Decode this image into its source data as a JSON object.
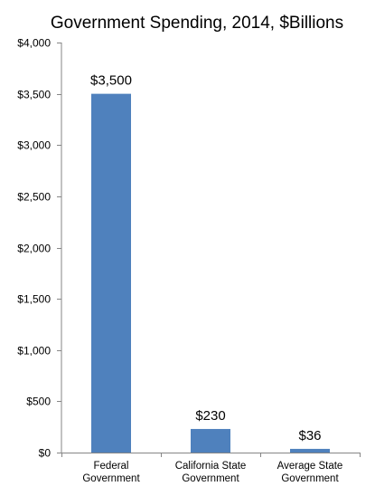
{
  "chart_data": {
    "type": "bar",
    "title": "Government Spending, 2014, $Billions",
    "xlabel": "",
    "ylabel": "",
    "categories": [
      [
        "Federal",
        "Government"
      ],
      [
        "California State",
        "Government"
      ],
      [
        "Average State",
        "Government"
      ]
    ],
    "values": [
      3500,
      230,
      36
    ],
    "value_labels": [
      "$3,500",
      "$230",
      "$36"
    ],
    "ylim": [
      0,
      4000
    ],
    "yticks": [
      0,
      500,
      1000,
      1500,
      2000,
      2500,
      3000,
      3500,
      4000
    ],
    "ytick_labels": [
      "$0",
      "$500",
      "$1,000",
      "$1,500",
      "$2,000",
      "$2,500",
      "$3,000",
      "$3,500",
      "$4,000"
    ],
    "grid": false,
    "legend": "none",
    "bar_color": "#4F81BD",
    "axis_color": "#868686"
  }
}
